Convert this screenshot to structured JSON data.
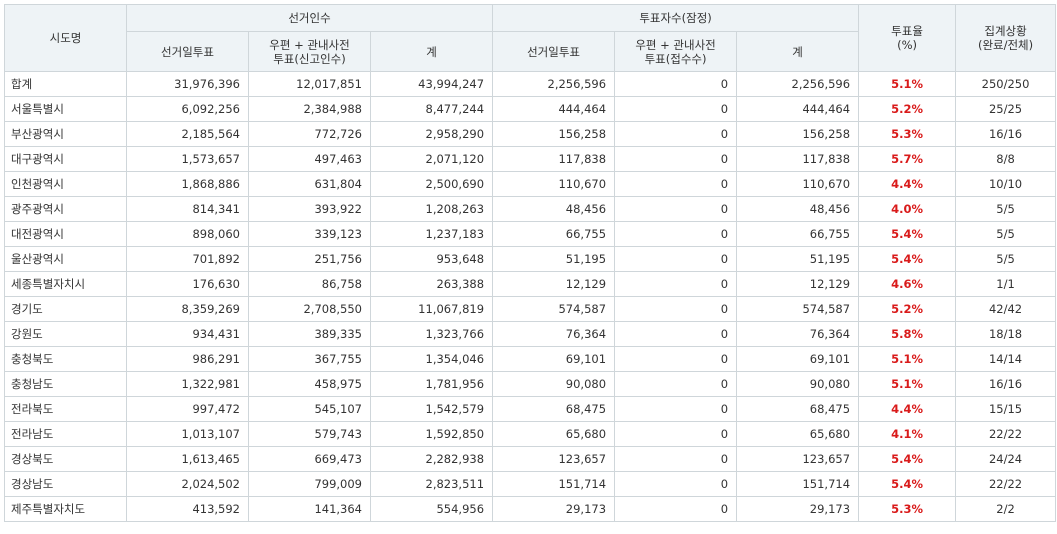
{
  "headers": {
    "region": "시도명",
    "electorate_group": "선거인수",
    "voters_group": "투표자수(잠정)",
    "electorate_sub": {
      "election_day": "선거일투표",
      "postal_line1": "우편 + 관내사전",
      "postal_line2": "투표(신고인수)",
      "total": "계"
    },
    "voters_sub": {
      "election_day": "선거일투표",
      "postal_line1": "우편 + 관내사전",
      "postal_line2": "투표(접수수)",
      "total": "계"
    },
    "rate_line1": "투표율",
    "rate_line2": "(%)",
    "status_line1": "집계상황",
    "status_line2": "(완료/전체)"
  },
  "rows": [
    {
      "region": "합계",
      "electorate_day": "31,976,396",
      "electorate_postal": "12,017,851",
      "electorate_total": "43,994,247",
      "voters_day": "2,256,596",
      "voters_postal": "0",
      "voters_total": "2,256,596",
      "rate": "5.1%",
      "status": "250/250"
    },
    {
      "region": "서울특별시",
      "electorate_day": "6,092,256",
      "electorate_postal": "2,384,988",
      "electorate_total": "8,477,244",
      "voters_day": "444,464",
      "voters_postal": "0",
      "voters_total": "444,464",
      "rate": "5.2%",
      "status": "25/25"
    },
    {
      "region": "부산광역시",
      "electorate_day": "2,185,564",
      "electorate_postal": "772,726",
      "electorate_total": "2,958,290",
      "voters_day": "156,258",
      "voters_postal": "0",
      "voters_total": "156,258",
      "rate": "5.3%",
      "status": "16/16"
    },
    {
      "region": "대구광역시",
      "electorate_day": "1,573,657",
      "electorate_postal": "497,463",
      "electorate_total": "2,071,120",
      "voters_day": "117,838",
      "voters_postal": "0",
      "voters_total": "117,838",
      "rate": "5.7%",
      "status": "8/8"
    },
    {
      "region": "인천광역시",
      "electorate_day": "1,868,886",
      "electorate_postal": "631,804",
      "electorate_total": "2,500,690",
      "voters_day": "110,670",
      "voters_postal": "0",
      "voters_total": "110,670",
      "rate": "4.4%",
      "status": "10/10"
    },
    {
      "region": "광주광역시",
      "electorate_day": "814,341",
      "electorate_postal": "393,922",
      "electorate_total": "1,208,263",
      "voters_day": "48,456",
      "voters_postal": "0",
      "voters_total": "48,456",
      "rate": "4.0%",
      "status": "5/5"
    },
    {
      "region": "대전광역시",
      "electorate_day": "898,060",
      "electorate_postal": "339,123",
      "electorate_total": "1,237,183",
      "voters_day": "66,755",
      "voters_postal": "0",
      "voters_total": "66,755",
      "rate": "5.4%",
      "status": "5/5"
    },
    {
      "region": "울산광역시",
      "electorate_day": "701,892",
      "electorate_postal": "251,756",
      "electorate_total": "953,648",
      "voters_day": "51,195",
      "voters_postal": "0",
      "voters_total": "51,195",
      "rate": "5.4%",
      "status": "5/5"
    },
    {
      "region": "세종특별자치시",
      "electorate_day": "176,630",
      "electorate_postal": "86,758",
      "electorate_total": "263,388",
      "voters_day": "12,129",
      "voters_postal": "0",
      "voters_total": "12,129",
      "rate": "4.6%",
      "status": "1/1"
    },
    {
      "region": "경기도",
      "electorate_day": "8,359,269",
      "electorate_postal": "2,708,550",
      "electorate_total": "11,067,819",
      "voters_day": "574,587",
      "voters_postal": "0",
      "voters_total": "574,587",
      "rate": "5.2%",
      "status": "42/42"
    },
    {
      "region": "강원도",
      "electorate_day": "934,431",
      "electorate_postal": "389,335",
      "electorate_total": "1,323,766",
      "voters_day": "76,364",
      "voters_postal": "0",
      "voters_total": "76,364",
      "rate": "5.8%",
      "status": "18/18"
    },
    {
      "region": "충청북도",
      "electorate_day": "986,291",
      "electorate_postal": "367,755",
      "electorate_total": "1,354,046",
      "voters_day": "69,101",
      "voters_postal": "0",
      "voters_total": "69,101",
      "rate": "5.1%",
      "status": "14/14"
    },
    {
      "region": "충청남도",
      "electorate_day": "1,322,981",
      "electorate_postal": "458,975",
      "electorate_total": "1,781,956",
      "voters_day": "90,080",
      "voters_postal": "0",
      "voters_total": "90,080",
      "rate": "5.1%",
      "status": "16/16"
    },
    {
      "region": "전라북도",
      "electorate_day": "997,472",
      "electorate_postal": "545,107",
      "electorate_total": "1,542,579",
      "voters_day": "68,475",
      "voters_postal": "0",
      "voters_total": "68,475",
      "rate": "4.4%",
      "status": "15/15"
    },
    {
      "region": "전라남도",
      "electorate_day": "1,013,107",
      "electorate_postal": "579,743",
      "electorate_total": "1,592,850",
      "voters_day": "65,680",
      "voters_postal": "0",
      "voters_total": "65,680",
      "rate": "4.1%",
      "status": "22/22"
    },
    {
      "region": "경상북도",
      "electorate_day": "1,613,465",
      "electorate_postal": "669,473",
      "electorate_total": "2,282,938",
      "voters_day": "123,657",
      "voters_postal": "0",
      "voters_total": "123,657",
      "rate": "5.4%",
      "status": "24/24"
    },
    {
      "region": "경상남도",
      "electorate_day": "2,024,502",
      "electorate_postal": "799,009",
      "electorate_total": "2,823,511",
      "voters_day": "151,714",
      "voters_postal": "0",
      "voters_total": "151,714",
      "rate": "5.4%",
      "status": "22/22"
    },
    {
      "region": "제주특별자치도",
      "electorate_day": "413,592",
      "electorate_postal": "141,364",
      "electorate_total": "554,956",
      "voters_day": "29,173",
      "voters_postal": "0",
      "voters_total": "29,173",
      "rate": "5.3%",
      "status": "2/2"
    }
  ],
  "colors": {
    "header_bg": "#eef3f6",
    "border": "#cfd6da",
    "rate_text": "#d91a1a"
  }
}
